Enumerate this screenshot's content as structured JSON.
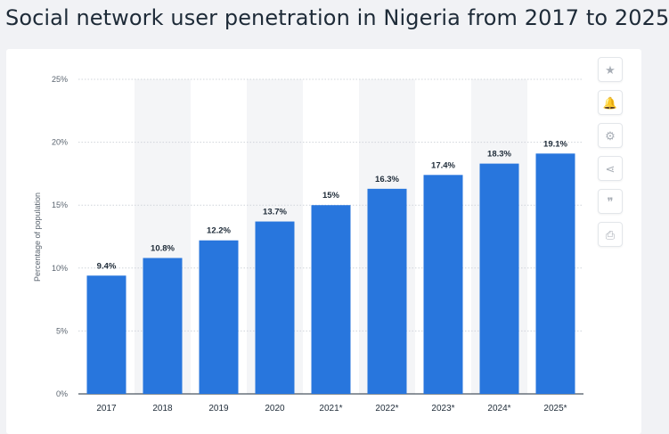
{
  "page": {
    "title": "Social network user penetration in Nigeria from 2017 to 2025"
  },
  "toolbar": {
    "buttons": [
      {
        "name": "favorite-button",
        "icon": "star-icon",
        "glyph": "★"
      },
      {
        "name": "notification-button",
        "icon": "bell-icon",
        "glyph": "🔔"
      },
      {
        "name": "settings-button",
        "icon": "gear-icon",
        "glyph": "⚙"
      },
      {
        "name": "share-button",
        "icon": "share-icon",
        "glyph": "⋖"
      },
      {
        "name": "cite-button",
        "icon": "quote-icon",
        "glyph": "❞"
      },
      {
        "name": "print-button",
        "icon": "printer-icon",
        "glyph": "⎙"
      }
    ]
  },
  "chart_data": {
    "type": "bar",
    "title": "Social network user penetration in Nigeria from 2017 to 2025",
    "xlabel": "",
    "ylabel": "Percentage of population",
    "categories": [
      "2017",
      "2018",
      "2019",
      "2020",
      "2021*",
      "2022*",
      "2023*",
      "2024*",
      "2025*"
    ],
    "values": [
      9.4,
      10.8,
      12.2,
      13.7,
      15,
      16.3,
      17.4,
      18.3,
      19.1
    ],
    "value_labels": [
      "9.4%",
      "10.8%",
      "12.2%",
      "13.7%",
      "15%",
      "16.3%",
      "17.4%",
      "18.3%",
      "19.1%"
    ],
    "ylim": [
      0,
      25
    ],
    "yticks": [
      0,
      5,
      10,
      15,
      20,
      25
    ],
    "ytick_labels": [
      "0%",
      "5%",
      "10%",
      "15%",
      "20%",
      "25%"
    ],
    "grid": true,
    "bar_color": "#2876dd",
    "band_color": "#f4f5f7",
    "legend": "none"
  }
}
